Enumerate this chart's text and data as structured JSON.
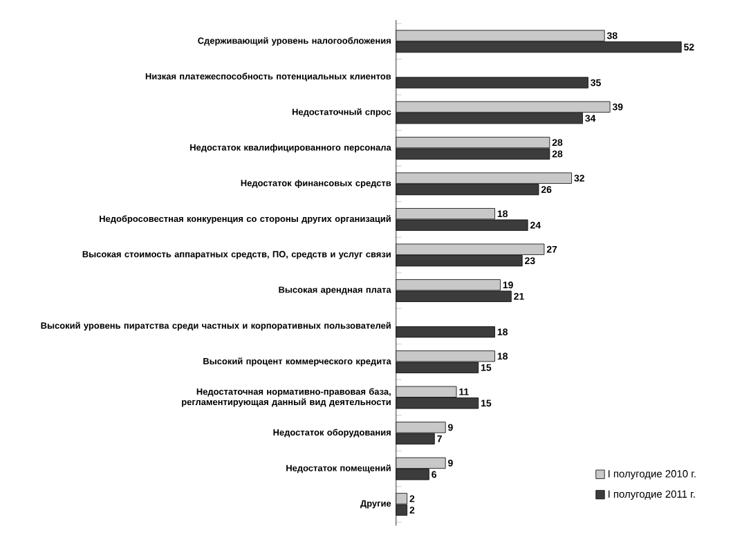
{
  "chart_data": {
    "type": "bar",
    "orientation": "horizontal",
    "data_labels": true,
    "legend": "bottom right",
    "categories": [
      "Сдерживающий уровень налогообложения",
      "Низкая платежеспособность потенциальных клиентов",
      "Недостаточный спрос",
      "Недостаток квалифицированного персонала",
      "Недостаток финансовых средств",
      "Недобросовестная конкуренция со стороны других организаций",
      "Высокая стоимость аппаратных средств, ПО, средств и услуг связи",
      "Высокая арендная плата",
      "Высокий уровень пиратства среди частных и корпоративных пользователей",
      "Высокий процент коммерческого кредита",
      "Недостаточная нормативно-правовая база, регламентирующая данный вид деятельности",
      "Недостаток оборудования",
      "Недостаток помещений",
      "Другие"
    ],
    "series": [
      {
        "name": "I полугодие 2010 г.",
        "color": "#c8c8c8",
        "values": [
          38,
          null,
          39,
          28,
          32,
          18,
          27,
          19,
          null,
          18,
          11,
          9,
          9,
          2
        ]
      },
      {
        "name": "I полугодие 2011 г.",
        "color": "#3c3c3c",
        "values": [
          52,
          35,
          34,
          28,
          26,
          24,
          23,
          21,
          18,
          15,
          15,
          7,
          6,
          2
        ]
      }
    ]
  }
}
